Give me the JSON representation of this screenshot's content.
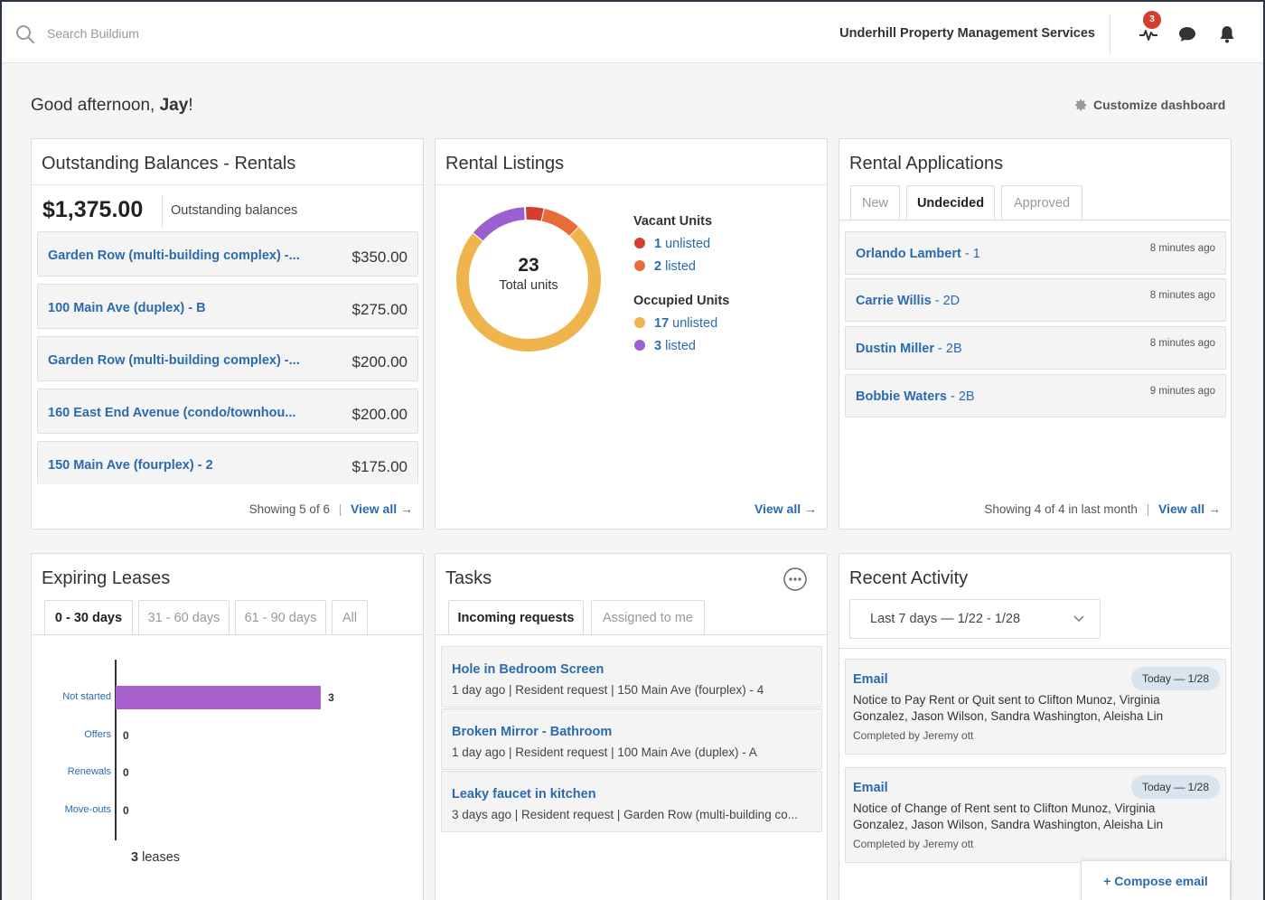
{
  "topbar": {
    "search_placeholder": "Search Buildium",
    "org_name": "Underhill Property Management Services",
    "notification_count": "3"
  },
  "greeting": {
    "prefix": "Good afternoon, ",
    "name": "Jay",
    "suffix": "!"
  },
  "customize_label": "Customize dashboard",
  "balances": {
    "title": "Outstanding Balances - Rentals",
    "total": "$1,375.00",
    "total_label": "Outstanding balances",
    "rows": [
      {
        "name": "Garden Row (multi-building complex) -...",
        "amount": "$350.00"
      },
      {
        "name": "100 Main Ave (duplex) - B",
        "amount": "$275.00"
      },
      {
        "name": "Garden Row (multi-building complex) -...",
        "amount": "$200.00"
      },
      {
        "name": "160 East End Avenue (condo/townhou...",
        "amount": "$200.00"
      },
      {
        "name": "150 Main Ave (fourplex) - 2",
        "amount": "$175.00"
      }
    ],
    "showing": "Showing 5 of 6",
    "separator": "|",
    "view_all": "View all →"
  },
  "listings": {
    "title": "Rental Listings",
    "total": "23",
    "total_label": "Total units",
    "vacant_head": "Vacant Units",
    "occupied_head": "Occupied Units",
    "legend": [
      {
        "count": "1",
        "label": " unlisted",
        "color": "#d43e2f",
        "value": 1
      },
      {
        "count": "2",
        "label": " listed",
        "color": "#e86c3a",
        "value": 2
      },
      {
        "count": "17",
        "label": " unlisted",
        "color": "#f0b44c",
        "value": 17
      },
      {
        "count": "3",
        "label": " listed",
        "color": "#9b5fd0",
        "value": 3
      }
    ],
    "view_all": "View all →"
  },
  "applications": {
    "title": "Rental Applications",
    "tabs": [
      "New",
      "Undecided",
      "Approved"
    ],
    "rows": [
      {
        "name": "Orlando Lambert",
        "unit": " - 1",
        "time": "8 minutes ago"
      },
      {
        "name": "Carrie Willis",
        "unit": " - 2D",
        "time": "8 minutes ago"
      },
      {
        "name": "Dustin Miller",
        "unit": " - 2B",
        "time": "8 minutes ago"
      },
      {
        "name": "Bobbie Waters",
        "unit": " - 2B",
        "time": "9 minutes ago"
      }
    ],
    "showing": "Showing 4 of 4 in last month",
    "separator": "|",
    "view_all": "View all →"
  },
  "leases": {
    "title": "Expiring Leases",
    "tabs": [
      "0 - 30 days",
      "31 - 60 days",
      "61 - 90 days",
      "All"
    ],
    "total_count": "3",
    "total_label": " leases"
  },
  "chart_data": {
    "type": "bar",
    "orientation": "horizontal",
    "categories": [
      "Not started",
      "Offers",
      "Renewals",
      "Move-outs"
    ],
    "values": [
      3,
      0,
      0,
      0
    ],
    "xlim": [
      0,
      3.5
    ],
    "color": "#a860cc"
  },
  "tasks": {
    "title": "Tasks",
    "tabs": [
      "Incoming requests",
      "Assigned to me"
    ],
    "rows": [
      {
        "title": "Hole in Bedroom Screen",
        "meta": "1 day ago | Resident request | 150 Main Ave (fourplex) - 4"
      },
      {
        "title": "Broken Mirror - Bathroom",
        "meta": "1 day ago | Resident request | 100 Main Ave (duplex) - A"
      },
      {
        "title": "Leaky faucet in kitchen",
        "meta": "3 days ago | Resident request | Garden Row (multi-building co..."
      }
    ]
  },
  "activity": {
    "title": "Recent Activity",
    "range": "Last 7 days — 1/22 - 1/28",
    "rows": [
      {
        "type": "Email",
        "date": "Today — 1/28",
        "desc": "Notice to Pay Rent or Quit sent to Clifton Munoz, Virginia Gonzalez, Jason Wilson, Sandra Washington, Aleisha Lin",
        "by": "Completed by Jeremy ott"
      },
      {
        "type": "Email",
        "date": "Today — 1/28",
        "desc": "Notice of Change of Rent sent to Clifton Munoz, Virginia Gonzalez, Jason Wilson, Sandra Washington, Aleisha Lin",
        "by": "Completed by Jeremy ott"
      }
    ],
    "compose": "+ Compose email"
  }
}
